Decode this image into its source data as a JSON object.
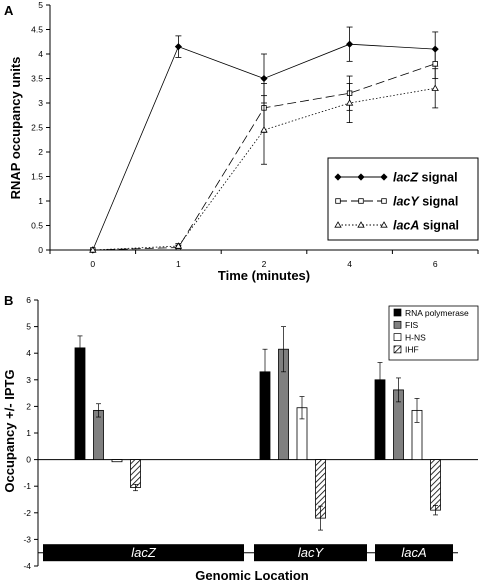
{
  "chart_data": [
    {
      "panel_label": "A",
      "type": "line",
      "x": [
        "0",
        "1",
        "2",
        "4",
        "6"
      ],
      "xlabel": "Time (minutes)",
      "ylabel": "RNAP occupancy units",
      "ylim": [
        0,
        5
      ],
      "yticks": [
        "0",
        "0.5",
        "1",
        "1.5",
        "2",
        "2.5",
        "3",
        "3.5",
        "4",
        "4.5",
        "5"
      ],
      "grid": false,
      "legend_position": "bottom-right",
      "series": [
        {
          "name_prefix": "lacZ",
          "name_suffix": " signal",
          "line_style": "solid",
          "marker": "diamond",
          "values": [
            0,
            4.15,
            3.5,
            4.2,
            4.1
          ],
          "errors": [
            0,
            0.22,
            0.5,
            0.35,
            0.35
          ]
        },
        {
          "name_prefix": "lacY",
          "name_suffix": " signal",
          "line_style": "long-dash",
          "marker": "square",
          "values": [
            0,
            0.05,
            2.9,
            3.2,
            3.8
          ],
          "errors": [
            0,
            0.05,
            0.5,
            0.35,
            0.3
          ]
        },
        {
          "name_prefix": "lacA",
          "name_suffix": " signal",
          "line_style": "dotted",
          "marker": "triangle",
          "values": [
            0,
            0.08,
            2.45,
            3.0,
            3.3
          ],
          "errors": [
            0,
            0.05,
            0.7,
            0.4,
            0.4
          ]
        }
      ]
    },
    {
      "panel_label": "B",
      "type": "bar",
      "xlabel": "Genomic Location",
      "ylabel": "Occupancy +/- IPTG",
      "ylim": [
        -4,
        6
      ],
      "yticks": [
        "-4",
        "-3",
        "-2",
        "-1",
        "0",
        "1",
        "2",
        "3",
        "4",
        "5",
        "6"
      ],
      "categories": [
        "lacZ",
        "lacY",
        "lacA"
      ],
      "legend_position": "top-right",
      "series": [
        {
          "name": "RNA polymerase",
          "fill": "solid-black",
          "values": [
            4.2,
            3.3,
            3.0
          ],
          "errors": [
            0.45,
            0.85,
            0.65
          ]
        },
        {
          "name": "FIS",
          "fill": "gray",
          "values": [
            1.85,
            4.15,
            2.62
          ],
          "errors": [
            0.25,
            0.85,
            0.45
          ]
        },
        {
          "name": "H-NS",
          "fill": "white",
          "values": [
            -0.08,
            1.95,
            1.85
          ],
          "errors": [
            0.0,
            0.42,
            0.45
          ]
        },
        {
          "name": "IHF",
          "fill": "hatched",
          "values": [
            -1.05,
            -2.2,
            -1.9
          ],
          "errors": [
            0.12,
            0.45,
            0.18
          ]
        }
      ],
      "gene_bar_labels": [
        "lacZ",
        "lacY",
        "lacA"
      ]
    }
  ],
  "colors": {
    "black": "#000000",
    "gray": "#808080",
    "white": "#ffffff",
    "axis": "#000000",
    "gridline": "#000000"
  }
}
